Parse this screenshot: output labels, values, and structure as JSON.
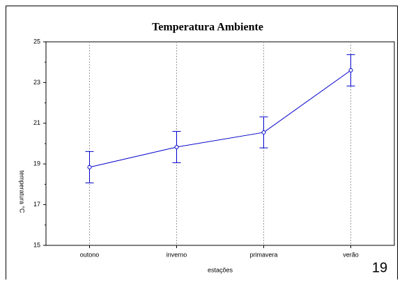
{
  "chart_data": {
    "type": "line",
    "title": "Temperatura Ambiente",
    "xlabel": "estações",
    "ylabel": "temperatura °C",
    "categories": [
      "outono",
      "inverno",
      "primavera",
      "verão"
    ],
    "series": [
      {
        "color": "#0000cc",
        "values": [
          18.84,
          19.83,
          20.55,
          23.6
        ],
        "errors": [
          0.77,
          0.77,
          0.76,
          0.77
        ]
      }
    ],
    "ylim": [
      15,
      25
    ],
    "yticks": [
      15,
      17,
      19,
      21,
      23,
      25
    ],
    "grid": true
  },
  "slide": {
    "page_number": "19"
  }
}
